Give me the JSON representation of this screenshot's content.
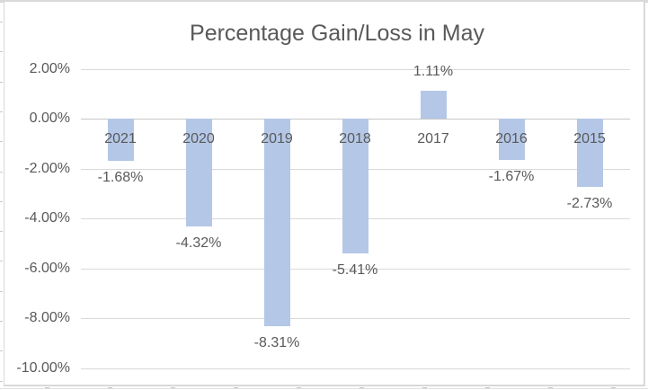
{
  "chart_data": {
    "type": "bar",
    "title": "Percentage Gain/Loss in May",
    "categories": [
      "2021",
      "2020",
      "2019",
      "2018",
      "2017",
      "2016",
      "2015"
    ],
    "values": [
      -1.68,
      -4.32,
      -8.31,
      -5.41,
      1.11,
      -1.67,
      -2.73
    ],
    "data_labels": [
      "-1.68%",
      "-4.32%",
      "-8.31%",
      "-5.41%",
      "1.11%",
      "-1.67%",
      "-2.73%"
    ],
    "y_ticks": [
      {
        "label": "2.00%",
        "value": 2
      },
      {
        "label": "0.00%",
        "value": 0
      },
      {
        "label": "-2.00%",
        "value": -2
      },
      {
        "label": "-4.00%",
        "value": -4
      },
      {
        "label": "-6.00%",
        "value": -6
      },
      {
        "label": "-8.00%",
        "value": -8
      },
      {
        "label": "-10.00%",
        "value": -10
      }
    ],
    "ylim": [
      -10,
      2
    ],
    "grid": true,
    "legend": "none",
    "category_label_position": "below-zero-axis",
    "data_label_position": "outside-end",
    "colors": {
      "bar_fill": "#b4c7e7",
      "gridline": "#d9d9d9",
      "zero_axis": "#c6c6c6",
      "text": "#595959",
      "chart_border": "#d9d9d9"
    }
  }
}
